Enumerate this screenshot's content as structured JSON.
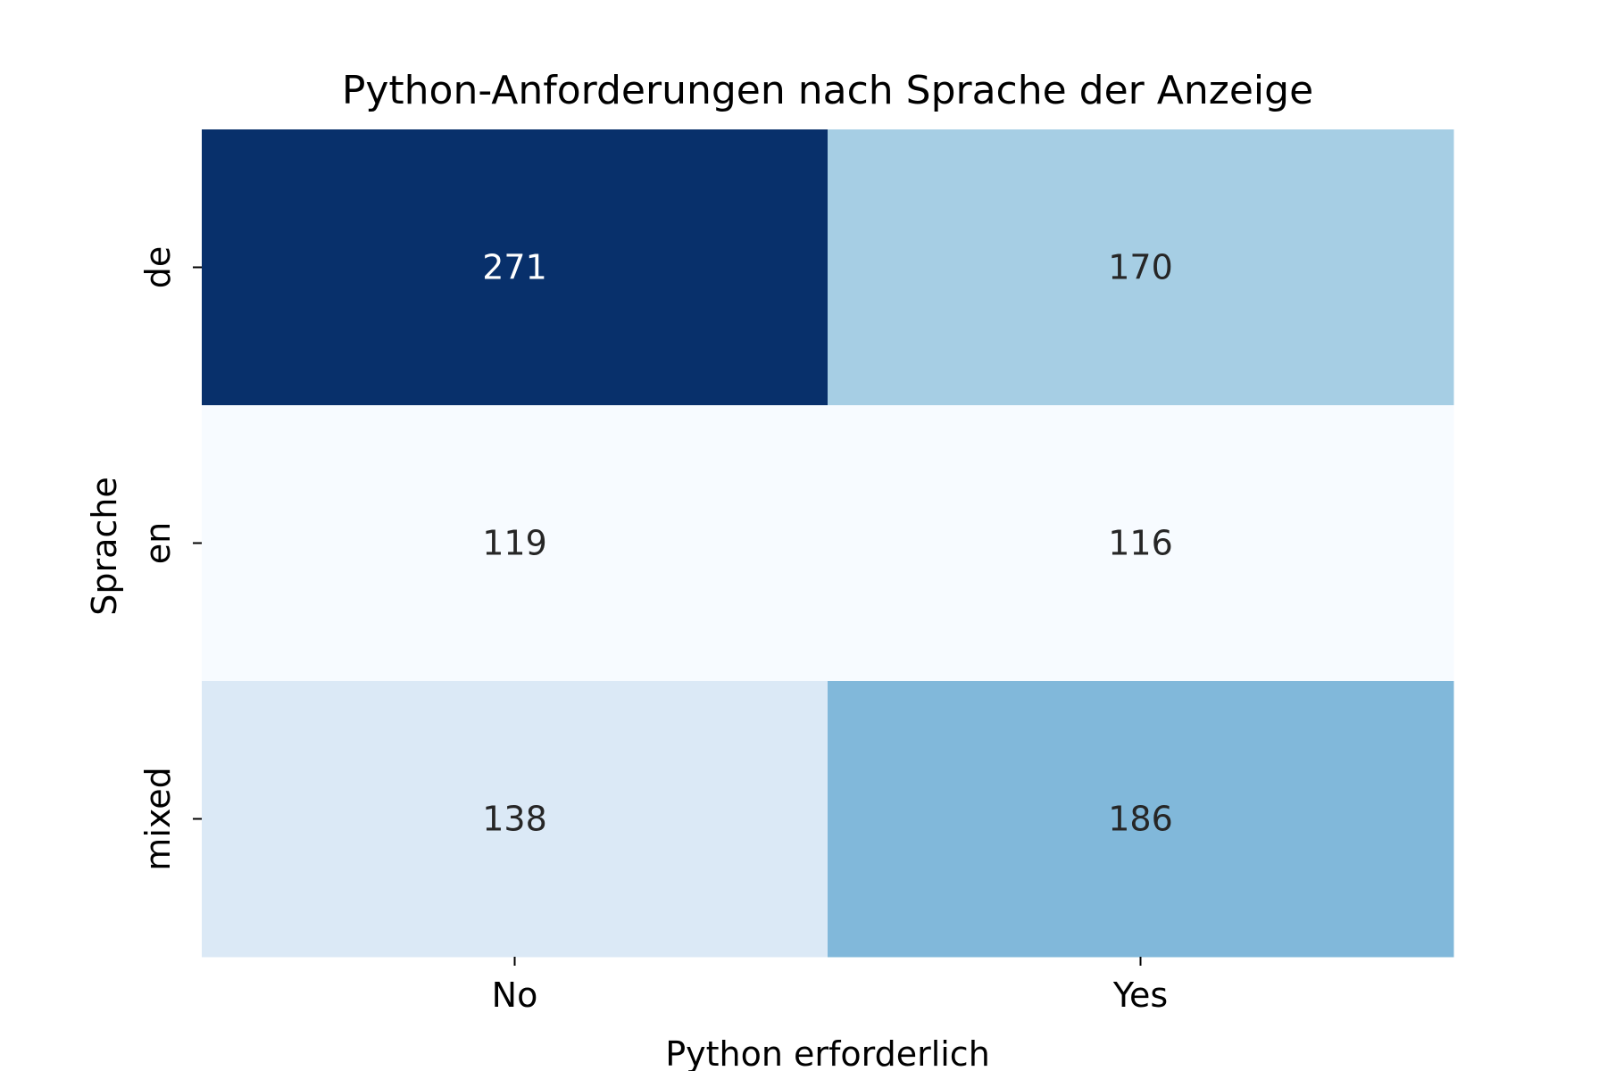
{
  "chart_data": {
    "type": "heatmap",
    "title": "Python-Anforderungen nach Sprache der Anzeige",
    "xlabel": "Python erforderlich",
    "ylabel": "Sprache",
    "x_categories": [
      "No",
      "Yes"
    ],
    "y_categories": [
      "de",
      "en",
      "mixed"
    ],
    "values": [
      [
        271,
        170
      ],
      [
        119,
        116
      ],
      [
        138,
        186
      ]
    ],
    "colormap": "Blues",
    "vmin": 116,
    "vmax": 271,
    "colorbar": false,
    "annotations": true,
    "cell_colors": [
      [
        "#08306b",
        "#a6cee4"
      ],
      [
        "#f7fbff",
        "#f7fbff"
      ],
      [
        "#dbe9f6",
        "#81b8da"
      ]
    ],
    "annotation_colors": [
      [
        "#ffffff",
        "#262626"
      ],
      [
        "#262626",
        "#262626"
      ],
      [
        "#262626",
        "#262626"
      ]
    ]
  }
}
